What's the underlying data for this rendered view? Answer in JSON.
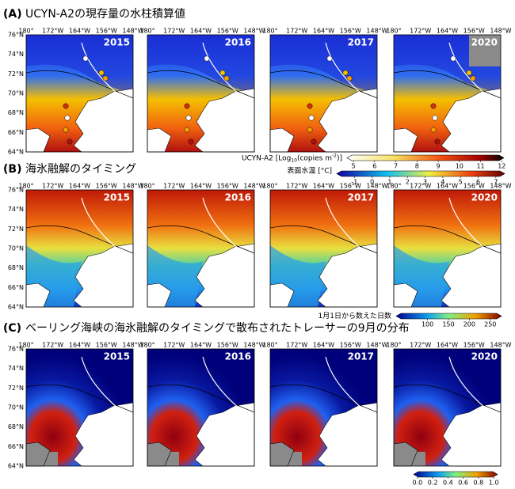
{
  "panels": [
    {
      "label": "(A)",
      "title": "UCYN-A2の現存量の水柱積算値",
      "years": [
        "2015",
        "2016",
        "2017",
        "2020"
      ]
    },
    {
      "label": "(B)",
      "title": "海氷融解のタイミング",
      "years": [
        "2015",
        "2016",
        "2017",
        "2020"
      ]
    },
    {
      "label": "(C)",
      "title": "ベーリング海峡の海氷融解のタイミングで散布されたトレーサーの9月の分布",
      "years": [
        "2015",
        "2016",
        "2017",
        "2020"
      ]
    }
  ],
  "lon_labels": [
    "180°",
    "172°W",
    "164°W",
    "156°W",
    "148°W"
  ],
  "lat_labels": [
    "76°N",
    "74°N",
    "72°N",
    "70°N",
    "68°N",
    "66°N",
    "64°N"
  ],
  "colorbars": [
    {
      "label_parts": [
        "UCYN-A2 [Log",
        "10",
        "(copies m",
        "-2",
        ")]"
      ],
      "lim": [
        4.7,
        12.1
      ],
      "ticks": [
        5,
        6,
        7,
        8,
        9,
        10,
        11,
        12
      ]
    },
    {
      "label": "表面水温 [°C]",
      "lim": [
        -2,
        7.5
      ],
      "ticks": [
        -1,
        0,
        1,
        2,
        3,
        4,
        5,
        6,
        7
      ]
    },
    {
      "label": "1月1日から数えた日数",
      "lim": [
        25,
        277
      ],
      "ticks": [
        100,
        150,
        200,
        250
      ]
    },
    {
      "lim": [
        -0.05,
        1.05
      ],
      "ticks": [
        {
          "value": 0,
          "label": "0.0"
        },
        0.2,
        0.4,
        0.6,
        0.8,
        {
          "value": 1,
          "label": "1.0"
        }
      ]
    }
  ]
}
